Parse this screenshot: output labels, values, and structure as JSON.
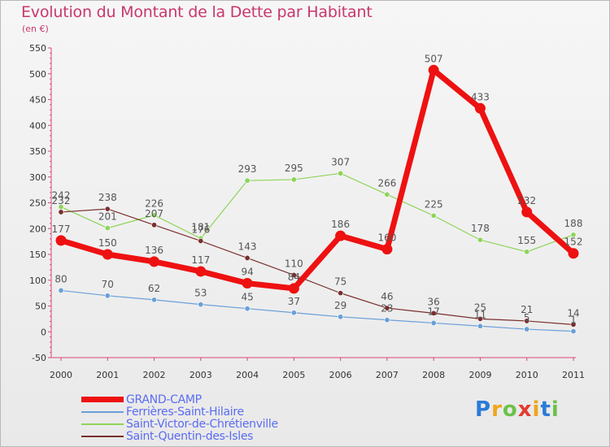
{
  "header": {
    "title": "Evolution du Montant de la Dette par Habitant",
    "subtitle": "(en €)"
  },
  "logo": {
    "text": "Proxiti",
    "colors": [
      "#2a7bd6",
      "#f0a51d",
      "#6cc24a",
      "#e23b2e",
      "#f0a51d",
      "#2a7bd6",
      "#6cc24a"
    ]
  },
  "chart_data": {
    "type": "line",
    "x": [
      "2000",
      "2001",
      "2002",
      "2003",
      "2004",
      "2005",
      "2006",
      "2007",
      "2008",
      "2009",
      "2010",
      "2011"
    ],
    "ylim": [
      -50,
      550
    ],
    "yticks": [
      -50,
      0,
      50,
      100,
      150,
      200,
      250,
      300,
      350,
      400,
      450,
      500,
      550
    ],
    "grid": false,
    "legend_position": "bottom-left",
    "series": [
      {
        "name": "Saint-Victor-de-Chrétienville",
        "color": "#8fd45a",
        "labels": [
          "242",
          "201",
          "226",
          "181",
          "293",
          "295",
          "307",
          "266",
          "225",
          "178",
          "155",
          "188"
        ],
        "values": [
          242,
          201,
          226,
          181,
          293,
          295,
          307,
          266,
          225,
          178,
          155,
          188
        ]
      },
      {
        "name": "Saint-Quentin-des-Isles",
        "color": "#7a2f2f",
        "labels": [
          "232",
          "238",
          "207",
          "176",
          "143",
          "110",
          "75",
          "46",
          "36",
          "25",
          "21",
          "14"
        ],
        "values": [
          232,
          238,
          207,
          176,
          143,
          110,
          75,
          46,
          36,
          25,
          21,
          14
        ]
      },
      {
        "name": "Ferrières-Saint-Hilaire",
        "color": "#6a9fd8",
        "labels": [
          "80",
          "70",
          "62",
          "53",
          "45",
          "37",
          "29",
          "23",
          "17",
          "11",
          "5",
          "1"
        ],
        "values": [
          80,
          70,
          62,
          53,
          45,
          37,
          29,
          23,
          17,
          11,
          5,
          1
        ]
      },
      {
        "name": "GRAND-CAMP",
        "color": "#ee1111",
        "labels": [
          "177",
          "150",
          "136",
          "117",
          "94",
          "84",
          "186",
          "160",
          "507",
          "433",
          "232",
          "152"
        ],
        "values": [
          177,
          150,
          136,
          117,
          94,
          84,
          186,
          160,
          507,
          433,
          232,
          152
        ]
      }
    ],
    "legend_order": [
      "GRAND-CAMP",
      "Ferrières-Saint-Hilaire",
      "Saint-Victor-de-Chrétienville",
      "Saint-Quentin-des-Isles"
    ]
  }
}
